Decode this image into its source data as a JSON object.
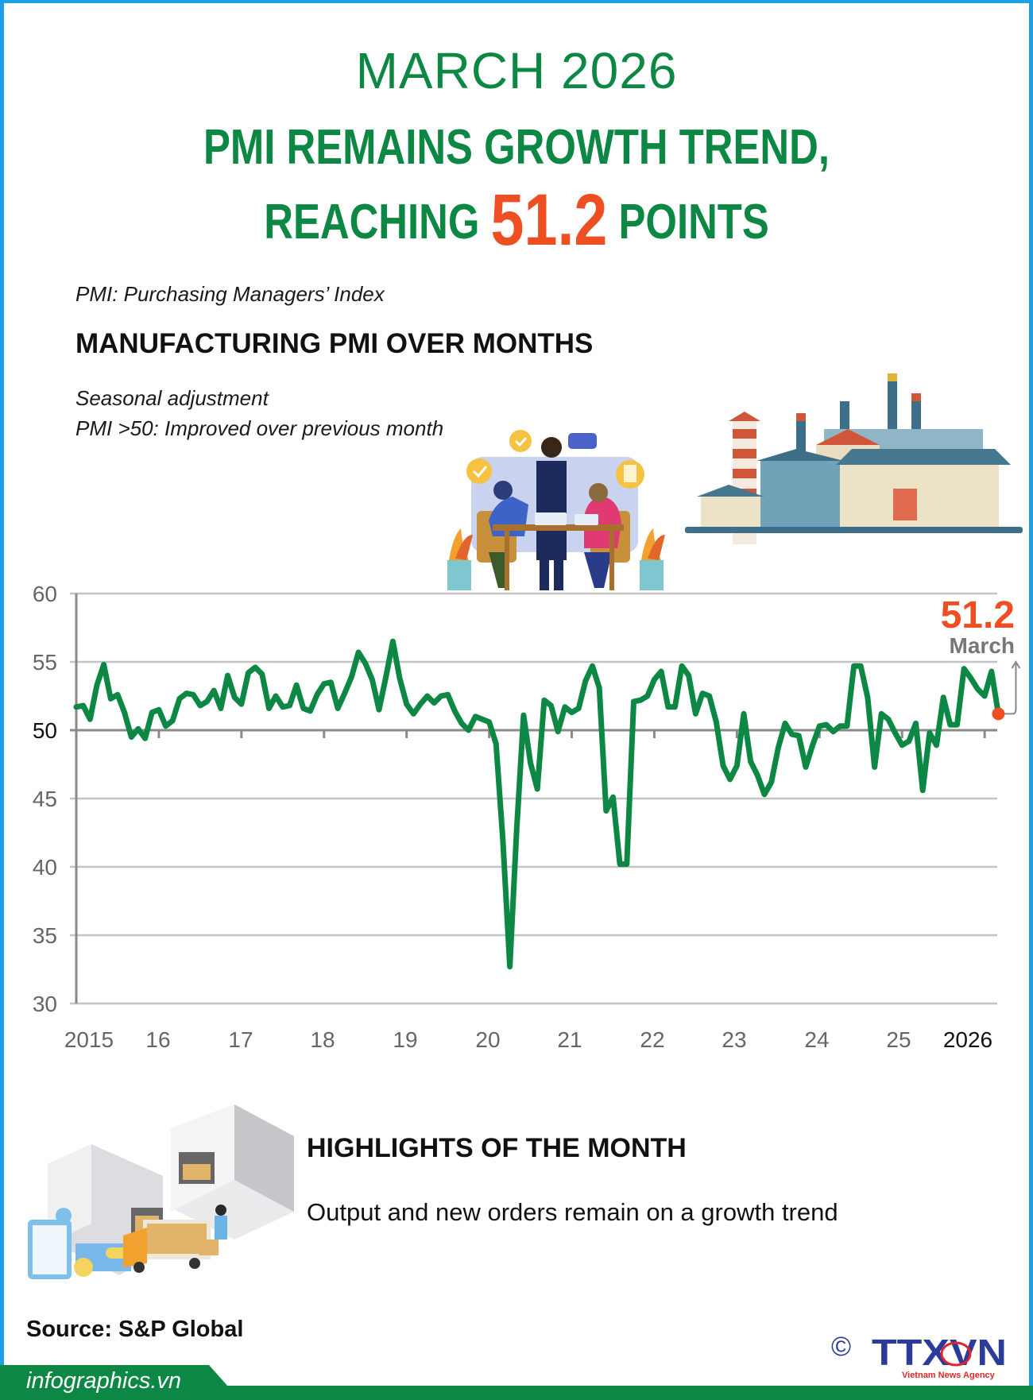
{
  "header": {
    "month": "MARCH 2026",
    "headline_line1": "PMI REMAINS GROWTH TREND,",
    "headline_line2_pre": "REACHING",
    "headline_value": "51.2",
    "headline_line2_post": "POINTS"
  },
  "intro": {
    "definition": "PMI: Purchasing Managers’ Index",
    "section_title": "MANUFACTURING PMI OVER MONTHS",
    "note1": "Seasonal adjustment",
    "note2": "PMI >50: Improved over previous month"
  },
  "colors": {
    "brand_green": "#0c8744",
    "highlight_orange": "#ee4f22",
    "frame_blue": "#1ea0e6",
    "grid_gray": "#bfbfbf",
    "axis_gray": "#808080",
    "logo_blue": "#2a3b9a",
    "logo_red": "#e0262b"
  },
  "chart_data": {
    "type": "line",
    "title": "MANUFACTURING PMI OVER MONTHS",
    "xlabel": "",
    "ylabel": "",
    "ylim": [
      30,
      60
    ],
    "yticks": [
      30,
      35,
      40,
      45,
      50,
      55,
      60
    ],
    "grid": true,
    "x_tick_labels": [
      "2015",
      "16",
      "17",
      "18",
      "19",
      "20",
      "21",
      "22",
      "23",
      "24",
      "25",
      "2026"
    ],
    "x_start": "2015-01",
    "x_end": "2026-03",
    "annotation": {
      "value": "51.2",
      "label": "March"
    },
    "series": [
      {
        "name": "Manufacturing PMI",
        "color": "#0c8744",
        "values": [
          51.7,
          51.8,
          50.8,
          53.3,
          54.8,
          52.3,
          52.6,
          51.3,
          49.5,
          50.1,
          49.4,
          51.3,
          51.5,
          50.3,
          50.7,
          52.3,
          52.7,
          52.6,
          51.8,
          52.1,
          52.9,
          51.6,
          54.0,
          52.4,
          51.9,
          54.2,
          54.6,
          54.1,
          51.6,
          52.5,
          51.7,
          51.8,
          53.3,
          51.6,
          51.4,
          52.6,
          53.4,
          53.5,
          51.6,
          52.7,
          53.9,
          55.7,
          54.9,
          53.7,
          51.5,
          53.9,
          56.5,
          53.8,
          51.9,
          51.2,
          51.9,
          52.5,
          52.0,
          52.5,
          52.6,
          51.4,
          50.5,
          50.0,
          51.0,
          50.8,
          50.6,
          49.0,
          41.9,
          32.7,
          42.7,
          51.1,
          47.6,
          45.7,
          52.2,
          51.8,
          49.9,
          51.7,
          51.3,
          51.6,
          53.6,
          54.7,
          53.1,
          44.1,
          45.1,
          40.2,
          40.2,
          52.1,
          52.2,
          52.5,
          53.7,
          54.3,
          51.7,
          51.7,
          54.7,
          54.0,
          51.2,
          52.7,
          52.5,
          50.6,
          47.4,
          46.4,
          47.4,
          51.2,
          47.7,
          46.7,
          45.3,
          46.2,
          48.7,
          50.5,
          49.7,
          49.6,
          47.3,
          48.9,
          50.3,
          50.4,
          49.9,
          50.3,
          50.3,
          54.7,
          54.7,
          52.4,
          47.3,
          51.2,
          50.8,
          49.8,
          48.9,
          49.2,
          50.5,
          45.6,
          49.8,
          48.9,
          52.4,
          50.4,
          50.4,
          54.5,
          53.8,
          53.0,
          52.5,
          54.3,
          51.2
        ]
      }
    ]
  },
  "highlights": {
    "title": "HIGHLIGHTS OF THE MONTH",
    "text": "Output and new orders remain on a growth trend"
  },
  "footer": {
    "source": "Source: S&P Global",
    "site": "infographics.vn",
    "copyright_symbol": "©",
    "logo_text": "TTXVN",
    "logo_subtitle": "Vietnam News Agency"
  },
  "icons": {
    "meeting": "business-meeting-illustration",
    "factory": "factory-illustration",
    "warehouse": "warehouse-logistics-illustration"
  }
}
